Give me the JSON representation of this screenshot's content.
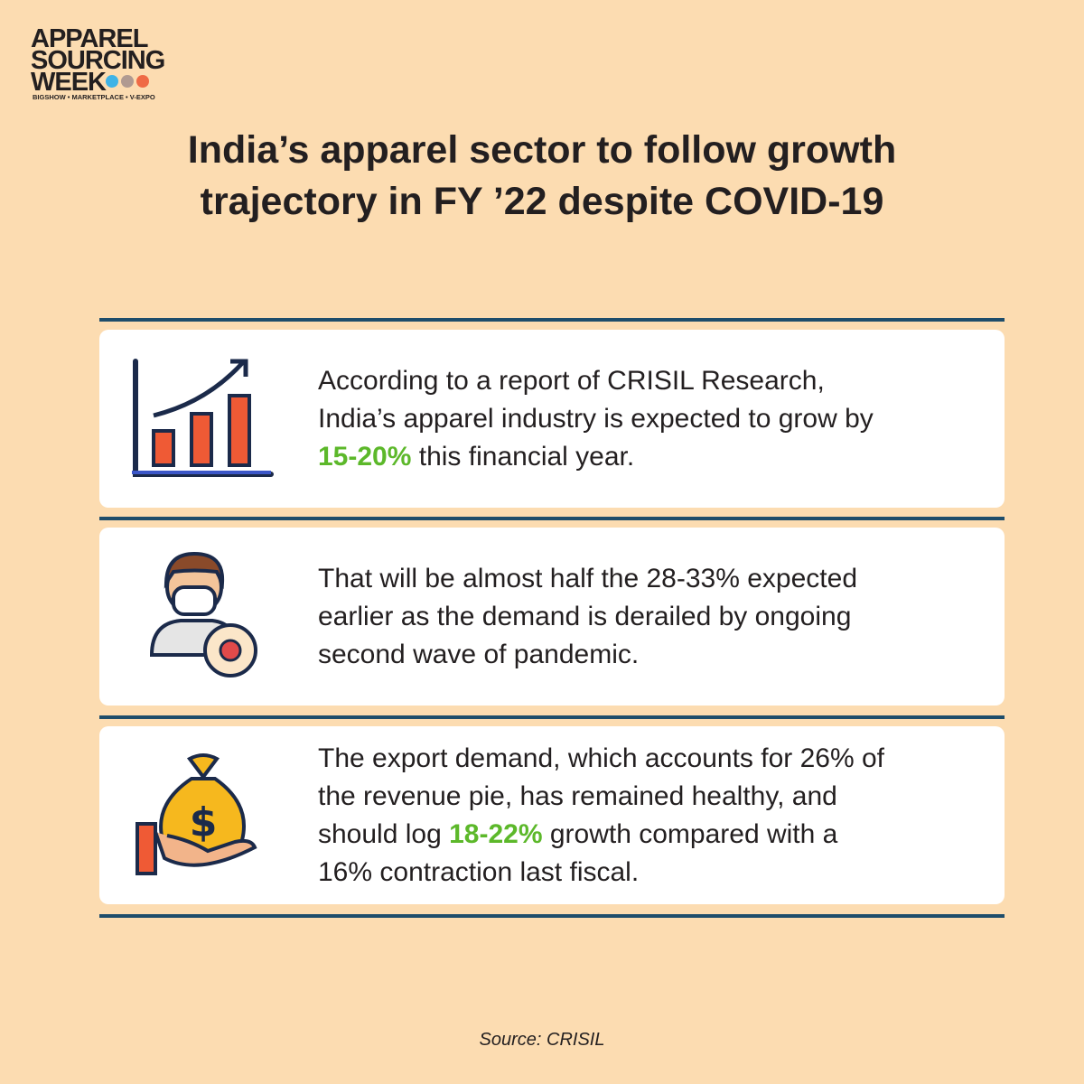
{
  "logo": {
    "lines": [
      "APPAREL",
      "SOURCING",
      "WEEK"
    ],
    "tagline": "BIGSHOW • MARKETPLACE • V-EXPO"
  },
  "title": [
    "India’s apparel sector to follow growth",
    "trajectory in FY ’22 despite COVID-19"
  ],
  "cards": [
    {
      "lines": [
        [
          {
            "text": "According to a report of CRISIL Research,"
          }
        ],
        [
          {
            "text": "India’s apparel industry is expected to grow by"
          }
        ],
        [
          {
            "text": "15-20%",
            "highlight": true
          },
          {
            "text": " this financial year."
          }
        ]
      ]
    },
    {
      "lines": [
        [
          {
            "text": "That will be almost half the 28-33% expected"
          }
        ],
        [
          {
            "text": "earlier as the demand is derailed by ongoing"
          }
        ],
        [
          {
            "text": "second wave of pandemic."
          }
        ]
      ]
    },
    {
      "lines": [
        [
          {
            "text": "The export demand, which accounts for 26% of"
          }
        ],
        [
          {
            "text": "the revenue pie, has remained healthy, and"
          }
        ],
        [
          {
            "text": "should log "
          },
          {
            "text": "18-22%",
            "highlight": true
          },
          {
            "text": " growth compared with a"
          }
        ],
        [
          {
            "text": "16% contraction last fiscal."
          }
        ]
      ]
    }
  ],
  "source": "Source: CRISIL"
}
